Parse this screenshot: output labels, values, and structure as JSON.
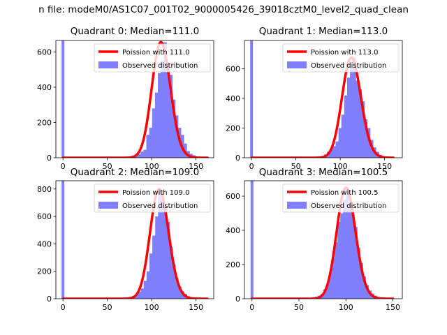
{
  "figure": {
    "suptitle": "n file: modeM0/AS1C07_001T02_9000005426_39018cztM0_level2_quad_clean"
  },
  "colors": {
    "hist": "#7f7fff",
    "poisson": "#ff0000",
    "axis": "#000000"
  },
  "chart_data": [
    {
      "type": "bar",
      "title": "Quadrant 0: Median=111.0",
      "median": 111.0,
      "xlim": [
        -8,
        170
      ],
      "ylim": [
        0,
        665
      ],
      "xticks": [
        0,
        50,
        100,
        150
      ],
      "yticks": [
        0,
        200,
        400,
        600
      ],
      "bin_width": 3.25,
      "zero_spike": 665,
      "bins": [
        [
          68,
          2
        ],
        [
          71.25,
          4
        ],
        [
          74.5,
          6
        ],
        [
          77.75,
          12
        ],
        [
          81,
          16
        ],
        [
          84.25,
          20
        ],
        [
          87.5,
          35
        ],
        [
          90.75,
          45
        ],
        [
          94,
          130
        ],
        [
          97.25,
          170
        ],
        [
          100.5,
          280
        ],
        [
          103.75,
          370
        ],
        [
          107,
          480
        ],
        [
          110.25,
          550
        ],
        [
          113.5,
          655
        ],
        [
          116.75,
          530
        ],
        [
          120,
          470
        ],
        [
          123.25,
          330
        ],
        [
          126.5,
          240
        ],
        [
          129.75,
          170
        ],
        [
          133,
          130
        ],
        [
          136.25,
          80
        ],
        [
          139.5,
          38
        ],
        [
          142.75,
          22
        ],
        [
          146,
          14
        ],
        [
          149.25,
          6
        ],
        [
          152.5,
          3
        ],
        [
          155.75,
          2
        ]
      ],
      "poisson_x": [
        0,
        163
      ],
      "legend": [
        {
          "label": "Poission with 111.0"
        },
        {
          "label": "Observed distribution"
        }
      ]
    },
    {
      "type": "bar",
      "title": "Quadrant 1: Median=113.0",
      "median": 113.0,
      "xlim": [
        -8,
        170
      ],
      "ylim": [
        0,
        790
      ],
      "xticks": [
        0,
        50,
        100,
        150
      ],
      "yticks": [
        0,
        200,
        400,
        600
      ],
      "bin_width": 3.25,
      "zero_spike": 790,
      "bins": [
        [
          72,
          3
        ],
        [
          75.25,
          6
        ],
        [
          78.5,
          12
        ],
        [
          81.75,
          22
        ],
        [
          85,
          40
        ],
        [
          88.25,
          60
        ],
        [
          91.5,
          78
        ],
        [
          94.75,
          110
        ],
        [
          98,
          200
        ],
        [
          101.25,
          290
        ],
        [
          104.5,
          420
        ],
        [
          107.75,
          540
        ],
        [
          111,
          610
        ],
        [
          114.25,
          675
        ],
        [
          117.5,
          520
        ],
        [
          120.75,
          460
        ],
        [
          124,
          380
        ],
        [
          127.25,
          260
        ],
        [
          130.5,
          200
        ],
        [
          133.75,
          120
        ],
        [
          137,
          70
        ],
        [
          140.25,
          40
        ],
        [
          143.5,
          20
        ],
        [
          146.75,
          10
        ],
        [
          150,
          5
        ],
        [
          153.25,
          2
        ]
      ],
      "poisson_x": [
        0,
        160
      ],
      "legend": [
        {
          "label": "Poission with 113.0"
        },
        {
          "label": "Observed distribution"
        }
      ]
    },
    {
      "type": "bar",
      "title": "Quadrant 2: Median=109.0",
      "median": 109.0,
      "xlim": [
        -8,
        170
      ],
      "ylim": [
        0,
        860
      ],
      "xticks": [
        0,
        50,
        100,
        150
      ],
      "yticks": [
        0,
        200,
        400,
        600,
        800
      ],
      "bin_width": 3.25,
      "zero_spike": 860,
      "bins": [
        [
          65,
          2
        ],
        [
          68.25,
          4
        ],
        [
          71.5,
          8
        ],
        [
          74.75,
          14
        ],
        [
          78,
          20
        ],
        [
          81.25,
          30
        ],
        [
          84.5,
          50
        ],
        [
          87.75,
          75
        ],
        [
          91,
          130
        ],
        [
          94.25,
          200
        ],
        [
          97.5,
          330
        ],
        [
          100.75,
          460
        ],
        [
          104,
          600
        ],
        [
          107.25,
          800
        ],
        [
          110.5,
          740
        ],
        [
          113.75,
          660
        ],
        [
          117,
          560
        ],
        [
          120.25,
          380
        ],
        [
          123.5,
          250
        ],
        [
          126.75,
          150
        ],
        [
          130,
          90
        ],
        [
          133.25,
          55
        ],
        [
          136.5,
          35
        ],
        [
          139.75,
          18
        ],
        [
          143,
          10
        ],
        [
          146.25,
          5
        ],
        [
          149.5,
          2
        ]
      ],
      "poisson_x": [
        0,
        163
      ],
      "legend": [
        {
          "label": "Poission with 109.0"
        },
        {
          "label": "Observed distribution"
        }
      ]
    },
    {
      "type": "bar",
      "title": "Quadrant 3: Median=100.5",
      "median": 100.5,
      "xlim": [
        -8,
        160
      ],
      "ylim": [
        0,
        690
      ],
      "xticks": [
        0,
        50,
        100,
        150
      ],
      "yticks": [
        0,
        200,
        400,
        600
      ],
      "bin_width": 3.0,
      "zero_spike": 690,
      "bins": [
        [
          55,
          2
        ],
        [
          58,
          3
        ],
        [
          61,
          5
        ],
        [
          64,
          8
        ],
        [
          67,
          12
        ],
        [
          70,
          18
        ],
        [
          73,
          28
        ],
        [
          76,
          55
        ],
        [
          79,
          85
        ],
        [
          82,
          150
        ],
        [
          85,
          240
        ],
        [
          88,
          330
        ],
        [
          91,
          450
        ],
        [
          94,
          500
        ],
        [
          97,
          580
        ],
        [
          100,
          650
        ],
        [
          103,
          560
        ],
        [
          106,
          490
        ],
        [
          109,
          420
        ],
        [
          112,
          300
        ],
        [
          115,
          210
        ],
        [
          118,
          130
        ],
        [
          121,
          80
        ],
        [
          124,
          48
        ],
        [
          127,
          30
        ],
        [
          130,
          18
        ],
        [
          133,
          10
        ],
        [
          136,
          5
        ],
        [
          139,
          2
        ]
      ],
      "poisson_x": [
        0,
        150
      ],
      "legend": [
        {
          "label": "Poission with 100.5"
        },
        {
          "label": "Observed distribution"
        }
      ]
    }
  ]
}
